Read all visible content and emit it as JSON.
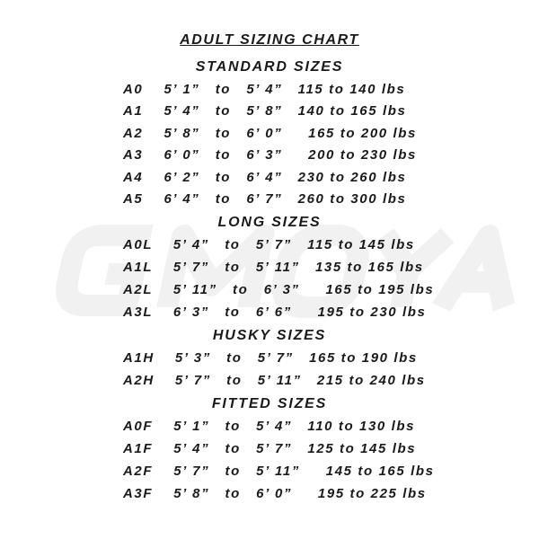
{
  "watermark": "GMOYA",
  "title": "ADULT SIZING CHART",
  "sections": [
    {
      "heading": "STANDARD SIZES",
      "rows": [
        "A0    5’ 1”   to   5’ 4”   115 to 140 lbs",
        "A1    5’ 4”   to   5’ 8”   140 to 165 lbs",
        "A2    5’ 8”   to   6’ 0”     165 to 200 lbs",
        "A3    6’ 0”   to   6’ 3”     200 to 230 lbs",
        "A4    6’ 2”   to   6’ 4”   230 to 260 lbs",
        "A5    6’ 4”   to   6’ 7”   260 to 300 lbs"
      ]
    },
    {
      "heading": "LONG SIZES",
      "rows": [
        "A0L    5’ 4”   to   5’ 7”   115 to 145 lbs",
        "A1L    5’ 7”   to   5’ 11”   135 to 165 lbs",
        "A2L    5’ 11”   to   6’ 3”     165 to 195 lbs",
        "A3L    6’ 3”   to   6’ 6”     195 to 230 lbs"
      ]
    },
    {
      "heading": "HUSKY SIZES",
      "rows": [
        "A1H    5’ 3”   to   5’ 7”   165 to 190 lbs",
        "A2H    5’ 7”   to   5’ 11”   215 to 240 lbs"
      ]
    },
    {
      "heading": "FITTED SIZES",
      "rows": [
        "A0F    5’ 1”   to   5’ 4”   110 to 130 lbs",
        "A1F    5’ 4”   to   5’ 7”   125 to 145 lbs",
        "A2F    5’ 7”   to   5’ 11”     145 to 165 lbs",
        "A3F    5’ 8”   to   6’ 0”     195 to 225 lbs"
      ]
    }
  ]
}
